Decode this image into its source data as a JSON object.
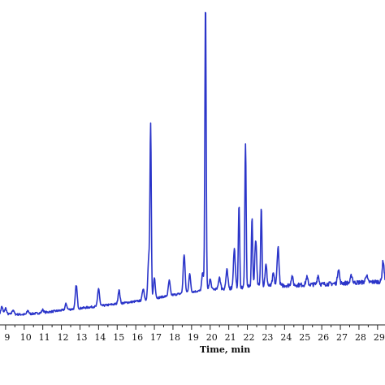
{
  "chart_data": {
    "type": "line",
    "title": "",
    "xlabel": "Time, min",
    "ylabel": "",
    "xlim": [
      8.7,
      29.4
    ],
    "ylim": [
      0,
      100
    ],
    "grid": false,
    "x_ticks": [
      9,
      10,
      11,
      12,
      13,
      14,
      15,
      16,
      17,
      18,
      19,
      20,
      21,
      22,
      23,
      24,
      25,
      26,
      27,
      28,
      29
    ],
    "x_tick_labels": [
      "9",
      "10",
      "11",
      "12",
      "13",
      "14",
      "15",
      "16",
      "17",
      "18",
      "19",
      "20",
      "21",
      "22",
      "23",
      "24",
      "25",
      "26",
      "27",
      "28",
      "29"
    ],
    "series": [
      {
        "color": "#2b35c9",
        "baseline": [
          [
            8.7,
            2.6
          ],
          [
            10,
            2.4
          ],
          [
            11,
            3.0
          ],
          [
            12,
            3.8
          ],
          [
            13,
            4.5
          ],
          [
            14,
            5.2
          ],
          [
            15,
            6.0
          ],
          [
            16,
            6.8
          ],
          [
            17,
            7.8
          ],
          [
            18,
            9.0
          ],
          [
            19,
            10.0
          ],
          [
            20,
            10.8
          ],
          [
            21,
            11.3
          ],
          [
            22,
            11.7
          ],
          [
            23,
            12.0
          ],
          [
            24,
            12.2
          ],
          [
            25,
            12.4
          ],
          [
            26,
            12.6
          ],
          [
            27,
            12.9
          ],
          [
            28,
            13.2
          ],
          [
            29.4,
            13.5
          ]
        ],
        "peaks": [
          [
            8.8,
            2.5
          ],
          [
            9.0,
            2.0
          ],
          [
            9.4,
            1.5
          ],
          [
            10.2,
            1.2
          ],
          [
            11.0,
            1.0
          ],
          [
            12.25,
            2.0
          ],
          [
            12.8,
            8.0
          ],
          [
            14.0,
            6.0
          ],
          [
            15.1,
            4.5
          ],
          [
            16.4,
            4.0
          ],
          [
            16.7,
            14.0
          ],
          [
            16.8,
            57.0
          ],
          [
            17.0,
            7.0
          ],
          [
            17.8,
            5.0
          ],
          [
            18.6,
            13.0
          ],
          [
            18.9,
            6.0
          ],
          [
            19.6,
            6.0
          ],
          [
            19.75,
            97.0
          ],
          [
            20.0,
            3.5
          ],
          [
            20.5,
            4.0
          ],
          [
            20.9,
            6.0
          ],
          [
            21.3,
            13.0
          ],
          [
            21.55,
            28.0
          ],
          [
            21.9,
            48.0
          ],
          [
            22.25,
            23.0
          ],
          [
            22.45,
            16.0
          ],
          [
            22.75,
            27.0
          ],
          [
            23.0,
            7.0
          ],
          [
            23.4,
            4.0
          ],
          [
            23.65,
            13.0
          ],
          [
            24.4,
            3.0
          ],
          [
            25.2,
            2.5
          ],
          [
            25.8,
            3.0
          ],
          [
            26.9,
            5.0
          ],
          [
            27.6,
            2.5
          ],
          [
            28.4,
            2.5
          ],
          [
            29.3,
            7.0
          ]
        ]
      }
    ]
  }
}
